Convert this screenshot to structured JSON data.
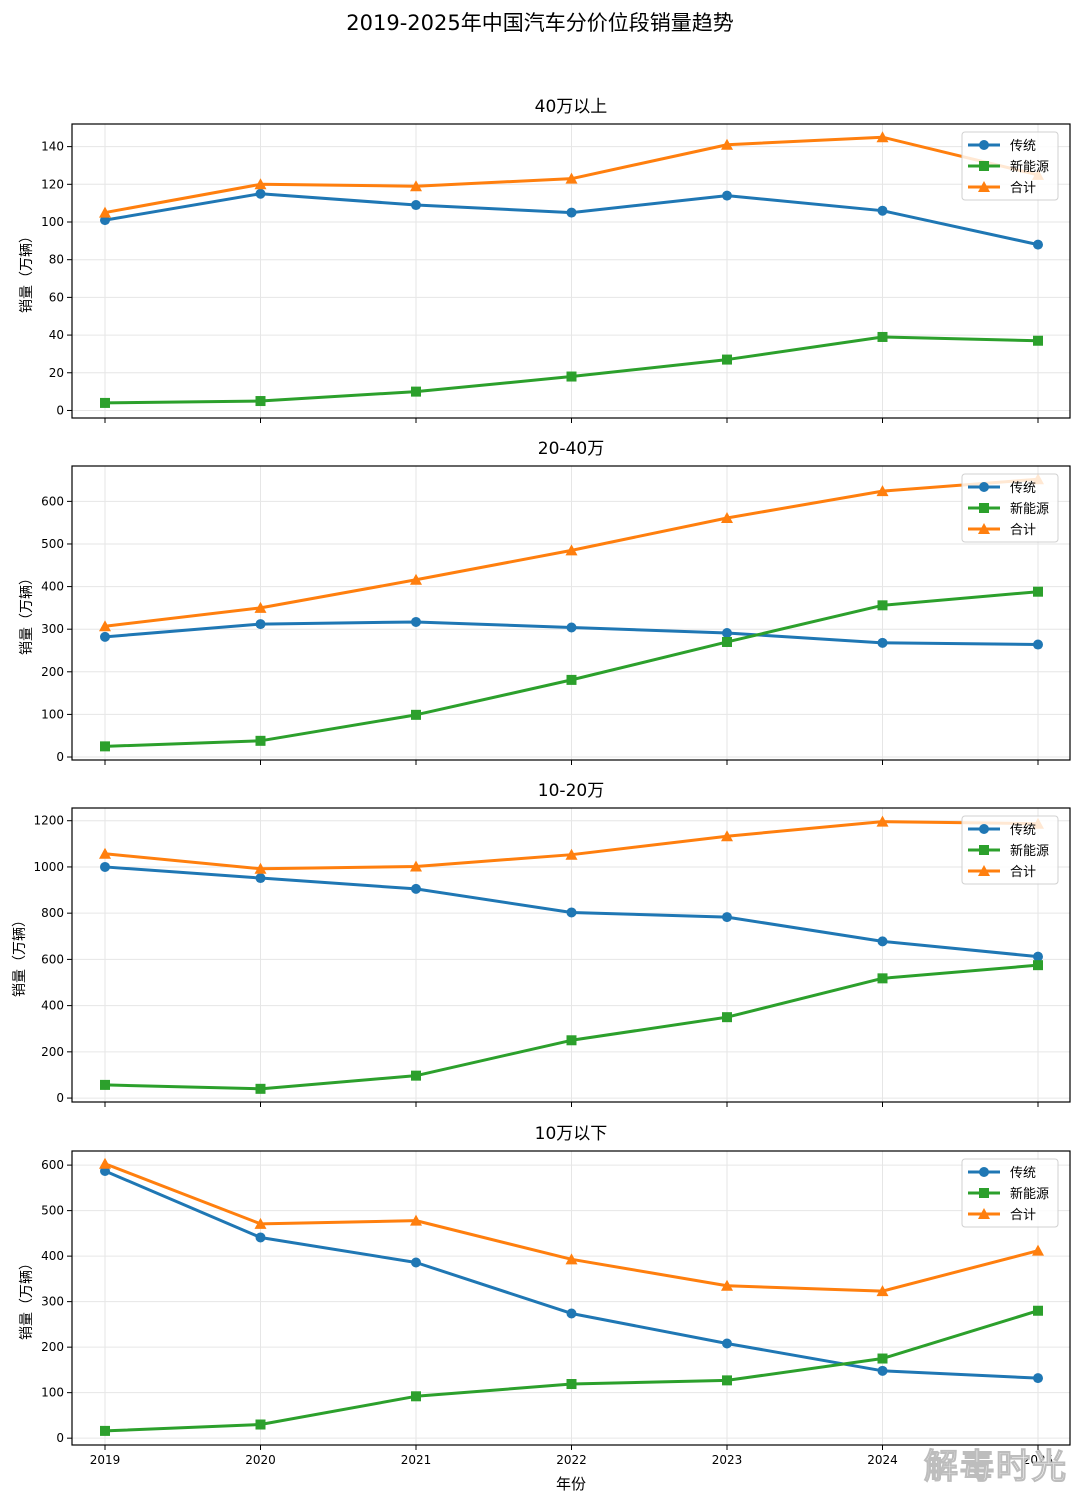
{
  "chart_data": {
    "type": "line",
    "title": "2019-2025年中国汽车分价位段销量趋势",
    "xlabel": "年份",
    "x": [
      "2019",
      "2020",
      "2021",
      "2022",
      "2023",
      "2024",
      "2025"
    ],
    "series_colors": {
      "传统": "#1f77b4",
      "新能源": "#2ca02c",
      "合计": "#ff7f0e"
    },
    "series_markers": {
      "传统": "circle",
      "新能源": "square",
      "合计": "triangle"
    },
    "legend_position": "top-right",
    "grid": true,
    "panels": [
      {
        "title": "40万以上",
        "ylabel": "销量（万辆）",
        "ylim": [
          -4,
          152
        ],
        "yticks": [
          0,
          20,
          40,
          60,
          80,
          100,
          120,
          140
        ],
        "series": [
          {
            "name": "传统",
            "values": [
              101,
              115,
              109,
              105,
              114,
              106,
              88
            ]
          },
          {
            "name": "新能源",
            "values": [
              4,
              5,
              10,
              18,
              27,
              39,
              37
            ]
          },
          {
            "name": "合计",
            "values": [
              105,
              120,
              119,
              123,
              141,
              145,
              125
            ]
          }
        ]
      },
      {
        "title": "20-40万",
        "ylabel": "销量（万辆）",
        "ylim": [
          -7,
          683
        ],
        "yticks": [
          0,
          100,
          200,
          300,
          400,
          500,
          600
        ],
        "series": [
          {
            "name": "传统",
            "values": [
              282,
              312,
              317,
              304,
              291,
              268,
              264
            ]
          },
          {
            "name": "新能源",
            "values": [
              25,
              38,
              99,
              181,
              270,
              356,
              388
            ]
          },
          {
            "name": "合计",
            "values": [
              307,
              350,
              416,
              485,
              561,
              624,
              652
            ]
          }
        ]
      },
      {
        "title": "10-20万",
        "ylabel": "销量（万辆）",
        "ylim": [
          -17,
          1255
        ],
        "yticks": [
          0,
          200,
          400,
          600,
          800,
          1000,
          1200
        ],
        "series": [
          {
            "name": "传统",
            "values": [
              1000,
              952,
              905,
              803,
              783,
              678,
              612
            ]
          },
          {
            "name": "新能源",
            "values": [
              57,
              40,
              97,
              250,
              350,
              518,
              575
            ]
          },
          {
            "name": "合计",
            "values": [
              1057,
              992,
              1002,
              1053,
              1133,
              1196,
              1187
            ]
          }
        ]
      },
      {
        "title": "10万以下",
        "ylabel": "销量（万辆）",
        "ylim": [
          -15,
          631
        ],
        "yticks": [
          0,
          100,
          200,
          300,
          400,
          500,
          600
        ],
        "series": [
          {
            "name": "传统",
            "values": [
              587,
              441,
              386,
              274,
              208,
              148,
              132
            ]
          },
          {
            "name": "新能源",
            "values": [
              16,
              30,
              92,
              119,
              127,
              175,
              280
            ]
          },
          {
            "name": "合计",
            "values": [
              603,
              471,
              478,
              393,
              335,
              323,
              412
            ]
          }
        ]
      }
    ]
  },
  "watermark": "解毒时光"
}
